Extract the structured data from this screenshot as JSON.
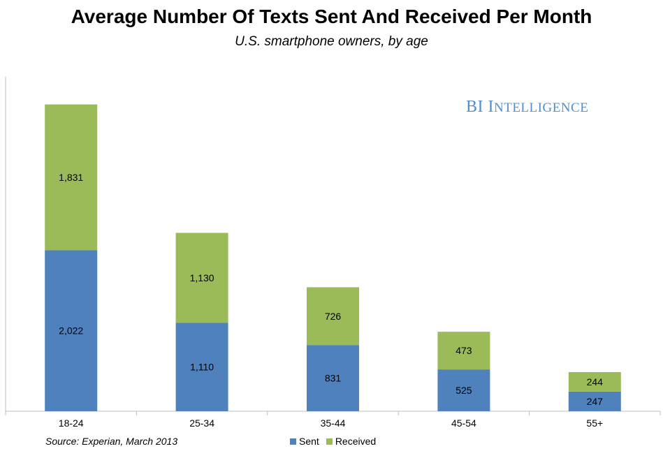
{
  "title": "Average Number Of Texts Sent And Received Per Month",
  "subtitle": "U.S. smartphone owners, by age",
  "brand": {
    "part1": "BI",
    "part2_initial": "I",
    "part2_rest": "NTELLIGENCE"
  },
  "source": "Source: Experian, March 2013",
  "colors": {
    "sent": "#4f81bd",
    "received": "#9bbb59",
    "brand": "#4f8fcf"
  },
  "chart_data": {
    "type": "bar",
    "stacked": true,
    "categories": [
      "18-24",
      "25-34",
      "35-44",
      "45-54",
      "55+"
    ],
    "series": [
      {
        "name": "Sent",
        "values": [
          2022,
          1110,
          831,
          525,
          247
        ],
        "labels": [
          "2,022",
          "1,110",
          "831",
          "525",
          "247"
        ]
      },
      {
        "name": "Received",
        "values": [
          1831,
          1130,
          726,
          473,
          244
        ],
        "labels": [
          "1,831",
          "1,130",
          "726",
          "473",
          "244"
        ]
      }
    ],
    "title": "Average Number Of Texts Sent And Received Per Month",
    "xlabel": "",
    "ylabel": "",
    "ylim": [
      0,
      4200
    ],
    "grid": false,
    "legend": "bottom-center"
  }
}
